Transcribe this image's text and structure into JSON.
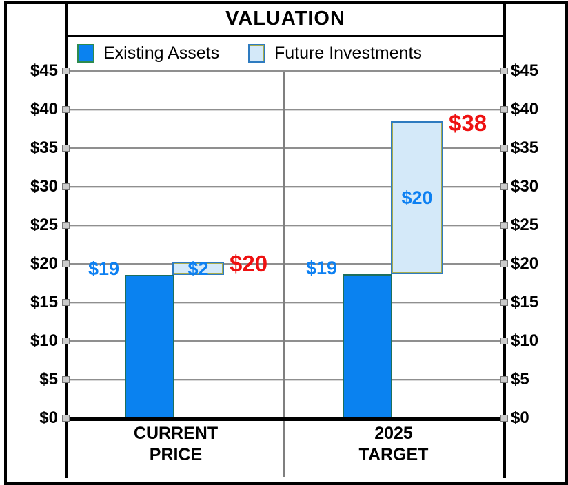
{
  "title": "VALUATION",
  "legend": {
    "items": [
      {
        "label": "Existing Assets",
        "color": "#0a82f0",
        "border": "#2e8b4e"
      },
      {
        "label": "Future Investments",
        "color": "#d4e9f9",
        "border": "#2e7bc0"
      }
    ]
  },
  "y_axis": {
    "prefix": "$",
    "min": 0,
    "max": 45,
    "step": 5
  },
  "chart_data": {
    "type": "bar",
    "subtype": "stacked waterfall columns (future investments stacked beside/atop existing assets)",
    "title": "VALUATION",
    "categories": [
      [
        "CURRENT",
        "PRICE"
      ],
      [
        "2025",
        "TARGET"
      ]
    ],
    "series": [
      {
        "name": "Existing Assets",
        "values": [
          19,
          19
        ],
        "labels": [
          "$19",
          "$19"
        ]
      },
      {
        "name": "Future Investments",
        "values": [
          2,
          20
        ],
        "labels": [
          "$2",
          "$20"
        ]
      }
    ],
    "totals": {
      "values": [
        20,
        38
      ],
      "labels": [
        "$20",
        "$38"
      ]
    },
    "drawn_extents": {
      "existing": [
        [
          0,
          18.6
        ],
        [
          0,
          18.7
        ]
      ],
      "future": [
        [
          18.6,
          20.3
        ],
        [
          18.7,
          38.5
        ]
      ]
    },
    "ylim": [
      0,
      45
    ],
    "ytick_step": 5,
    "ytick_prefix": "$",
    "grid": true,
    "legend_position": "top",
    "axis_sides": "both"
  },
  "colors": {
    "existing_fill": "#0a82f0",
    "existing_border": "#1e6f5c",
    "future_fill": "#d4e9f9",
    "future_border": "#2e7bc0",
    "future_inner_line": "#a8ad4e",
    "value_label_blue": "#0d80f2",
    "total_label_red": "#ee1111",
    "gridline": "#8f8f8f",
    "divider": "#7f7f7f",
    "axis": "#000000"
  }
}
